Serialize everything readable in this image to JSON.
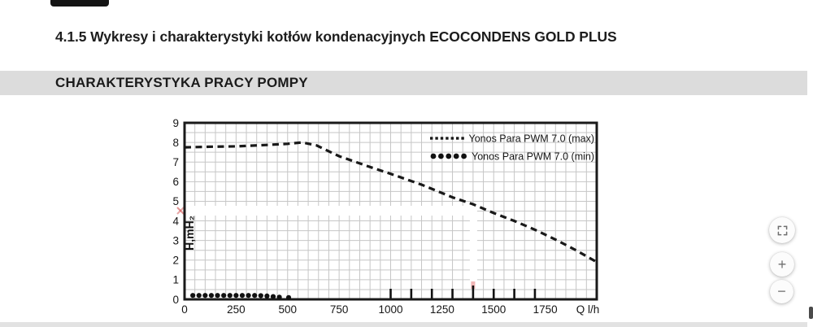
{
  "page": {
    "heading": "4.1.5 Wykresy i charakterystyki kotłów kondenacyjnych ECOCONDENS GOLD PLUS",
    "section_title": "CHARAKTERYSTYKA PRACY POMPY"
  },
  "controls": {
    "zoom_in": "+",
    "zoom_out": "−",
    "fit_icon": "fit-to-screen"
  },
  "chart_data": {
    "type": "line",
    "title": "",
    "xlabel": "Q l/h",
    "ylabel": "H,mH₂O",
    "xlim": [
      0,
      2000
    ],
    "ylim": [
      0,
      9
    ],
    "x_ticks": [
      0,
      250,
      500,
      750,
      1000,
      1250,
      1500,
      1750
    ],
    "y_ticks": [
      0,
      1,
      2,
      3,
      4,
      5,
      6,
      7,
      8,
      9
    ],
    "grid": {
      "on": true,
      "x_step": 50,
      "y_step": 0.5
    },
    "legend_position": "top-right",
    "series": [
      {
        "name": "Yonos Para PWM 7.0 (max)",
        "style": "dashed",
        "color": "#191919",
        "points": [
          [
            0,
            7.75
          ],
          [
            120,
            7.78
          ],
          [
            250,
            7.8
          ],
          [
            400,
            7.87
          ],
          [
            500,
            7.93
          ],
          [
            570,
            8.0
          ],
          [
            640,
            7.85
          ],
          [
            750,
            7.3
          ],
          [
            900,
            6.75
          ],
          [
            1000,
            6.4
          ],
          [
            1150,
            5.85
          ],
          [
            1300,
            5.2
          ],
          [
            1400,
            4.85
          ],
          [
            1500,
            4.4
          ],
          [
            1600,
            4.0
          ],
          [
            1700,
            3.55
          ],
          [
            1800,
            3.05
          ],
          [
            1900,
            2.5
          ],
          [
            2000,
            1.9
          ]
        ]
      },
      {
        "name": "Yonos Para PWM 7.0 (min)",
        "style": "dots",
        "color": "#111111",
        "points": [
          [
            40,
            0.2
          ],
          [
            70,
            0.2
          ],
          [
            100,
            0.2
          ],
          [
            130,
            0.2
          ],
          [
            160,
            0.2
          ],
          [
            190,
            0.2
          ],
          [
            220,
            0.2
          ],
          [
            250,
            0.2
          ],
          [
            280,
            0.2
          ],
          [
            310,
            0.2
          ],
          [
            340,
            0.2
          ],
          [
            370,
            0.19
          ],
          [
            400,
            0.17
          ],
          [
            430,
            0.14
          ],
          [
            460,
            0.11
          ],
          [
            505,
            0.09
          ]
        ]
      }
    ],
    "bottom_ticks": [
      1000,
      1100,
      1200,
      1300,
      1400,
      1500,
      1600,
      1700
    ]
  }
}
